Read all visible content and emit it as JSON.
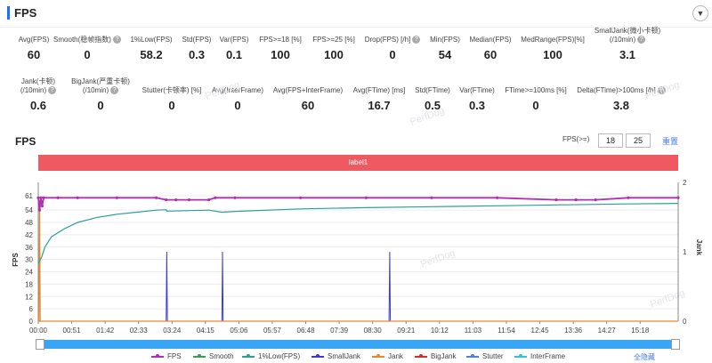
{
  "header": {
    "title": "FPS",
    "collapse_icon": "chevron-down-icon"
  },
  "stats": [
    {
      "label": "Avg(FPS)",
      "value": "60",
      "help": false
    },
    {
      "label": "Smooth(稳帧指数)",
      "value": "0",
      "help": true
    },
    {
      "label": "1%Low(FPS)",
      "value": "58.2",
      "help": false
    },
    {
      "label": "Std(FPS)",
      "value": "0.3",
      "help": false
    },
    {
      "label": "Var(FPS)",
      "value": "0.1",
      "help": false
    },
    {
      "label": "FPS>=18 [%]",
      "value": "100",
      "help": false
    },
    {
      "label": "FPS>=25 [%]",
      "value": "100",
      "help": false
    },
    {
      "label": "Drop(FPS) [/h]",
      "value": "0",
      "help": true
    },
    {
      "label": "Min(FPS)",
      "value": "54",
      "help": false
    },
    {
      "label": "Median(FPS)",
      "value": "60",
      "help": false
    },
    {
      "label": "MedRange(FPS)[%]",
      "value": "100",
      "help": false
    },
    {
      "label": "SmallJank(微小卡顿)\n(/10min)",
      "value": "3.1",
      "help": true
    },
    {
      "label": "Jank(卡顿)\n(/10min)",
      "value": "0.6",
      "help": true
    },
    {
      "label": "BigJank(严重卡顿)\n(/10min)",
      "value": "0",
      "help": true
    },
    {
      "label": "Stutter(卡顿率) [%]",
      "value": "0",
      "help": false
    },
    {
      "label": "Avg(InterFrame)",
      "value": "0",
      "help": false
    },
    {
      "label": "Avg(FPS+InterFrame)",
      "value": "60",
      "help": false
    },
    {
      "label": "Avg(FTime) [ms]",
      "value": "16.7",
      "help": false
    },
    {
      "label": "Std(FTime)",
      "value": "0.5",
      "help": false
    },
    {
      "label": "Var(FTime)",
      "value": "0.3",
      "help": false
    },
    {
      "label": "FTime>=100ms [%]",
      "value": "0",
      "help": false
    },
    {
      "label": "Delta(FTime)>100ms [/h]",
      "value": "3.8",
      "help": true
    }
  ],
  "chart_header": {
    "title": "FPS",
    "filter_label": "FPS(>=)",
    "filter_value_1": "18",
    "filter_value_2": "25",
    "reset_label": "重置"
  },
  "label_bar": "label1",
  "watermark": "PerfDog",
  "legend": {
    "items": [
      {
        "name": "FPS",
        "color": "#b02fb0"
      },
      {
        "name": "Smooth",
        "color": "#3a9d4c"
      },
      {
        "name": "1%Low(FPS)",
        "color": "#2aa198"
      },
      {
        "name": "SmallJank",
        "color": "#3b3bd6"
      },
      {
        "name": "Jank",
        "color": "#e58a2e"
      },
      {
        "name": "BigJank",
        "color": "#d62d2d"
      },
      {
        "name": "Stutter",
        "color": "#4a80e0"
      },
      {
        "name": "InterFrame",
        "color": "#33c3d6"
      }
    ],
    "hide_all": "全隐藏"
  },
  "chart_data": {
    "type": "line",
    "xlabel": "",
    "ylabel": "FPS",
    "y2label": "Jank",
    "ylim": [
      0,
      61
    ],
    "y2lim": [
      0,
      2
    ],
    "yticks": [
      0,
      6,
      12,
      18,
      24,
      30,
      36,
      42,
      48,
      54,
      61
    ],
    "y2ticks": [
      0,
      1,
      2
    ],
    "x_ticks": [
      "00:00",
      "00:51",
      "01:42",
      "02:33",
      "03:24",
      "04:15",
      "05:06",
      "05:57",
      "06:48",
      "07:39",
      "08:30",
      "09:21",
      "10:12",
      "11:03",
      "11:54",
      "12:45",
      "13:36",
      "14:27",
      "15:18"
    ],
    "x_range_seconds": [
      0,
      976
    ],
    "series": [
      {
        "name": "FPS",
        "x": [
          0,
          2,
          4,
          6,
          8,
          30,
          60,
          120,
          180,
          195,
          210,
          230,
          260,
          270,
          300,
          400,
          500,
          600,
          700,
          790,
          820,
          850,
          900,
          976
        ],
        "values": [
          60,
          54,
          60,
          56,
          60,
          60,
          60,
          60,
          60,
          59,
          59,
          59,
          59,
          60,
          60,
          60,
          60,
          60,
          60,
          59,
          59,
          59,
          60,
          60
        ]
      },
      {
        "name": "1%Low(FPS)",
        "x": [
          0,
          5,
          10,
          20,
          40,
          60,
          90,
          120,
          150,
          180,
          195,
          196,
          260,
          280,
          300,
          400,
          500,
          600,
          700,
          800,
          900,
          976
        ],
        "values": [
          28,
          31,
          36,
          41,
          45,
          48,
          50.5,
          52,
          53,
          54,
          54.2,
          53.5,
          54,
          53,
          53.4,
          54.6,
          55.2,
          55.7,
          56.1,
          56.6,
          57,
          57.3
        ]
      },
      {
        "name": "SmallJank",
        "x": [
          0,
          195,
          196,
          197,
          280,
          281,
          282,
          535,
          536,
          537,
          976
        ],
        "values": [
          0,
          0,
          1,
          0,
          0,
          1,
          0,
          0,
          1,
          0,
          0
        ]
      },
      {
        "name": "Jank",
        "x": [
          0,
          1,
          2,
          3,
          976
        ],
        "values": [
          0,
          0,
          1.75,
          0,
          0
        ]
      },
      {
        "name": "Smooth",
        "x": [
          0,
          976
        ],
        "values": [
          0,
          0
        ]
      }
    ]
  }
}
